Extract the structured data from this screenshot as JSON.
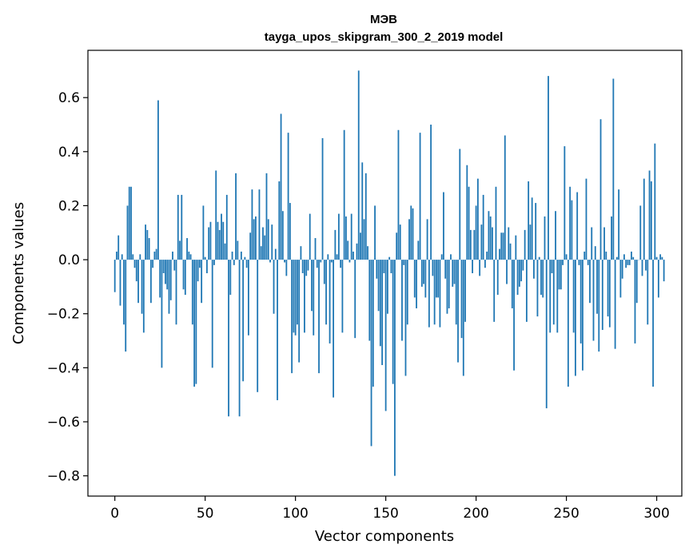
{
  "chart_data": {
    "type": "bar",
    "title_line1": "МЭВ",
    "title_line2": "tayga_upos_skipgram_300_2_2019 model",
    "xlabel": "Vector components",
    "ylabel": "Components values",
    "xlim": [
      -14.9,
      313.9
    ],
    "ylim": [
      -0.875,
      0.775
    ],
    "xticks": [
      0,
      50,
      100,
      150,
      200,
      250,
      300
    ],
    "yticks": [
      -0.8,
      -0.6,
      -0.4,
      -0.2,
      0.0,
      0.2,
      0.4,
      0.6
    ],
    "ytick_labels": [
      "−0.8",
      "−0.6",
      "−0.4",
      "−0.2",
      "0.0",
      "0.2",
      "0.4",
      "0.6"
    ],
    "bar_color": "#1f77b4",
    "grid": false,
    "values": [
      -0.12,
      0.03,
      0.09,
      -0.17,
      0.02,
      -0.24,
      -0.34,
      0.2,
      0.27,
      0.27,
      0.02,
      -0.03,
      -0.08,
      -0.16,
      0.02,
      -0.2,
      -0.27,
      0.13,
      0.11,
      0.08,
      -0.16,
      -0.03,
      0.03,
      0.04,
      0.59,
      -0.14,
      -0.4,
      -0.05,
      -0.09,
      -0.11,
      -0.2,
      -0.15,
      0.03,
      -0.04,
      -0.24,
      0.24,
      0.07,
      0.24,
      -0.11,
      -0.13,
      0.08,
      0.03,
      0.02,
      -0.24,
      -0.47,
      -0.46,
      -0.08,
      -0.03,
      -0.16,
      0.2,
      0.01,
      -0.05,
      0.12,
      0.14,
      -0.4,
      -0.02,
      0.33,
      0.14,
      0.11,
      0.17,
      0.14,
      0.06,
      0.24,
      -0.58,
      -0.13,
      0.03,
      -0.02,
      0.32,
      0.07,
      -0.58,
      0.03,
      -0.45,
      0.01,
      -0.03,
      -0.28,
      0.1,
      0.26,
      0.15,
      0.16,
      -0.49,
      0.26,
      0.05,
      0.12,
      0.09,
      0.32,
      0.15,
      -0.01,
      0.13,
      -0.2,
      0.04,
      -0.52,
      0.29,
      0.54,
      0.18,
      -0.01,
      -0.06,
      0.47,
      0.21,
      -0.42,
      -0.27,
      -0.28,
      -0.24,
      -0.38,
      0.05,
      -0.05,
      -0.27,
      -0.06,
      -0.04,
      0.17,
      -0.19,
      -0.28,
      0.08,
      -0.03,
      -0.42,
      -0.01,
      0.45,
      -0.09,
      -0.24,
      0.02,
      -0.31,
      -0.01,
      -0.51,
      0.11,
      0.02,
      0.17,
      -0.03,
      -0.27,
      0.48,
      0.16,
      0.07,
      -0.01,
      0.17,
      0.03,
      -0.29,
      0.06,
      0.7,
      0.1,
      0.36,
      0.15,
      0.32,
      0.05,
      -0.3,
      -0.69,
      -0.47,
      0.2,
      -0.07,
      -0.19,
      -0.32,
      -0.39,
      -0.05,
      -0.56,
      -0.2,
      0.01,
      -0.05,
      -0.46,
      -0.8,
      0.1,
      0.48,
      0.13,
      -0.3,
      -0.02,
      -0.43,
      -0.24,
      0.15,
      0.2,
      0.19,
      -0.14,
      -0.18,
      0.07,
      0.47,
      -0.1,
      -0.09,
      -0.14,
      0.15,
      -0.25,
      0.5,
      -0.06,
      -0.24,
      -0.14,
      -0.14,
      -0.25,
      0.02,
      0.25,
      -0.07,
      -0.2,
      -0.18,
      0.02,
      -0.1,
      -0.09,
      -0.24,
      -0.38,
      0.41,
      -0.29,
      -0.43,
      -0.23,
      0.35,
      0.27,
      0.11,
      -0.05,
      0.11,
      0.2,
      0.3,
      -0.06,
      0.13,
      0.24,
      -0.03,
      0.03,
      0.18,
      0.16,
      0.12,
      -0.23,
      0.27,
      -0.13,
      0.04,
      0.1,
      0.1,
      0.46,
      -0.09,
      0.12,
      0.06,
      -0.18,
      -0.41,
      0.09,
      -0.13,
      -0.1,
      -0.08,
      -0.04,
      0.11,
      -0.23,
      0.29,
      0.13,
      0.23,
      -0.07,
      0.21,
      -0.21,
      0.01,
      -0.13,
      -0.14,
      0.16,
      -0.55,
      0.68,
      -0.27,
      -0.05,
      -0.24,
      0.18,
      -0.27,
      -0.11,
      -0.11,
      -0.02,
      0.42,
      0.02,
      -0.47,
      0.27,
      0.22,
      -0.27,
      -0.43,
      0.25,
      -0.02,
      -0.31,
      -0.41,
      0.03,
      0.3,
      -0.02,
      -0.16,
      0.12,
      -0.3,
      0.05,
      -0.2,
      -0.34,
      0.52,
      -0.26,
      0.12,
      0.03,
      -0.21,
      -0.25,
      0.16,
      0.67,
      -0.33,
      0.01,
      0.26,
      -0.14,
      -0.07,
      0.02,
      -0.03,
      -0.02,
      -0.02,
      0.03,
      0.01,
      -0.31,
      -0.16,
      0.0,
      0.2,
      -0.06,
      0.3,
      -0.04,
      -0.24,
      0.33,
      0.29,
      -0.47,
      0.43,
      0.01,
      -0.14,
      0.02,
      0.01,
      -0.08
    ]
  }
}
